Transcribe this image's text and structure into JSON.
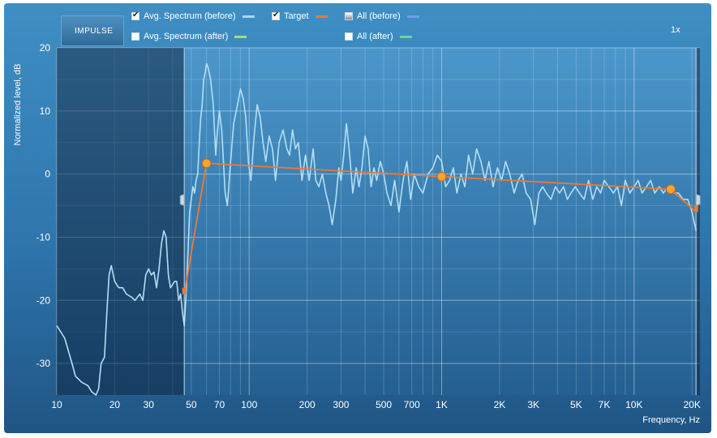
{
  "logo": "IMPULSE",
  "legend": [
    {
      "label": "Avg. Spectrum (before)",
      "checked": true,
      "color": "#a8d6f2"
    },
    {
      "label": "Target",
      "checked": true,
      "color": "#f07832"
    },
    {
      "label": "All (before)",
      "checked": false,
      "color": "#6f9ef0"
    },
    {
      "label": "Avg. Spectrum (after)",
      "checked": false,
      "color": "#9fe07a"
    },
    {
      "label": "All (after)",
      "checked": false,
      "color": "#6ed49a"
    }
  ],
  "zoom": "1x",
  "chart_data": {
    "type": "line",
    "xlabel": "Frequency, Hz",
    "ylabel": "Normalized level, dB",
    "x_scale": "log",
    "xlim": [
      10,
      22000
    ],
    "ylim": [
      -35,
      20
    ],
    "x_ticks": [
      {
        "value": 10,
        "label": "10"
      },
      {
        "value": 20,
        "label": "20"
      },
      {
        "value": 30,
        "label": "30"
      },
      {
        "value": 50,
        "label": "50"
      },
      {
        "value": 70,
        "label": "70"
      },
      {
        "value": 100,
        "label": "100"
      },
      {
        "value": 200,
        "label": "200"
      },
      {
        "value": 300,
        "label": "300"
      },
      {
        "value": 500,
        "label": "500"
      },
      {
        "value": 700,
        "label": "700"
      },
      {
        "value": 1000,
        "label": "1K"
      },
      {
        "value": 2000,
        "label": "2K"
      },
      {
        "value": 3000,
        "label": "3K"
      },
      {
        "value": 5000,
        "label": "5K"
      },
      {
        "value": 7000,
        "label": "7K"
      },
      {
        "value": 10000,
        "label": "10K"
      },
      {
        "value": 20000,
        "label": "20K"
      }
    ],
    "y_ticks": [
      {
        "value": 20,
        "label": "20"
      },
      {
        "value": 10,
        "label": "10"
      },
      {
        "value": 0,
        "label": "0"
      },
      {
        "value": -10,
        "label": "-10"
      },
      {
        "value": -20,
        "label": "-20"
      },
      {
        "value": -30,
        "label": "-30"
      }
    ],
    "grid": true,
    "range_limits_hz": [
      46,
      21000
    ],
    "series": [
      {
        "name": "Avg. Spectrum (before)",
        "color": "#b4def4",
        "points": [
          [
            10,
            -24
          ],
          [
            11,
            -26
          ],
          [
            12,
            -30
          ],
          [
            12.5,
            -32
          ],
          [
            13.5,
            -33
          ],
          [
            14.5,
            -33.5
          ],
          [
            15.2,
            -34.5
          ],
          [
            16,
            -35
          ],
          [
            16.5,
            -34
          ],
          [
            17,
            -30
          ],
          [
            17.7,
            -29
          ],
          [
            18.2,
            -22
          ],
          [
            18.7,
            -16
          ],
          [
            19.2,
            -14.5
          ],
          [
            20,
            -17
          ],
          [
            21,
            -18
          ],
          [
            22,
            -18
          ],
          [
            23,
            -19
          ],
          [
            24.5,
            -19.5
          ],
          [
            25.5,
            -20
          ],
          [
            27,
            -19
          ],
          [
            28,
            -20
          ],
          [
            29,
            -16
          ],
          [
            30,
            -15
          ],
          [
            31,
            -16
          ],
          [
            32,
            -15.5
          ],
          [
            33,
            -18
          ],
          [
            34,
            -15
          ],
          [
            35,
            -11
          ],
          [
            36,
            -9
          ],
          [
            37,
            -10
          ],
          [
            38,
            -16
          ],
          [
            39,
            -18
          ],
          [
            41,
            -17
          ],
          [
            42,
            -17
          ],
          [
            43,
            -20
          ],
          [
            44,
            -19
          ],
          [
            45,
            -22
          ],
          [
            46,
            -24
          ],
          [
            47,
            -19
          ],
          [
            48,
            -13
          ],
          [
            49,
            -6
          ],
          [
            50,
            -4
          ],
          [
            51,
            -2
          ],
          [
            52,
            -3
          ],
          [
            53,
            -1
          ],
          [
            54,
            0
          ],
          [
            55,
            5
          ],
          [
            56,
            9
          ],
          [
            57,
            11
          ],
          [
            58,
            15
          ],
          [
            59,
            16
          ],
          [
            60,
            17.5
          ],
          [
            61,
            17
          ],
          [
            62,
            16
          ],
          [
            63,
            15
          ],
          [
            64,
            13
          ],
          [
            65,
            11
          ],
          [
            66,
            7
          ],
          [
            67,
            3
          ],
          [
            68,
            6
          ],
          [
            70,
            10
          ],
          [
            72,
            7
          ],
          [
            75,
            -3
          ],
          [
            77,
            -5
          ],
          [
            80,
            2
          ],
          [
            83,
            8
          ],
          [
            87,
            11
          ],
          [
            90,
            13.5
          ],
          [
            93,
            12
          ],
          [
            96,
            9
          ],
          [
            99,
            2
          ],
          [
            102,
            -1
          ],
          [
            106,
            6
          ],
          [
            110,
            11
          ],
          [
            114,
            9
          ],
          [
            118,
            5
          ],
          [
            122,
            2
          ],
          [
            127,
            6
          ],
          [
            132,
            4
          ],
          [
            137,
            -1
          ],
          [
            143,
            5
          ],
          [
            150,
            7
          ],
          [
            157,
            4
          ],
          [
            162,
            3
          ],
          [
            168,
            7
          ],
          [
            174,
            4
          ],
          [
            180,
            5
          ],
          [
            188,
            -1
          ],
          [
            196,
            3
          ],
          [
            205,
            -1
          ],
          [
            215,
            4
          ],
          [
            222,
            -1
          ],
          [
            230,
            -2
          ],
          [
            240,
            0
          ],
          [
            250,
            -3
          ],
          [
            260,
            -5
          ],
          [
            270,
            -8
          ],
          [
            282,
            -4
          ],
          [
            292,
            1
          ],
          [
            300,
            -1
          ],
          [
            310,
            3
          ],
          [
            320,
            8
          ],
          [
            333,
            3
          ],
          [
            345,
            -3
          ],
          [
            360,
            1
          ],
          [
            372,
            -2
          ],
          [
            385,
            1
          ],
          [
            400,
            6
          ],
          [
            415,
            4
          ],
          [
            430,
            -2
          ],
          [
            445,
            1
          ],
          [
            460,
            -1
          ],
          [
            480,
            2
          ],
          [
            500,
            0
          ],
          [
            520,
            -3
          ],
          [
            545,
            -5
          ],
          [
            570,
            -1
          ],
          [
            600,
            -6
          ],
          [
            630,
            -1
          ],
          [
            660,
            2
          ],
          [
            690,
            -4
          ],
          [
            720,
            0
          ],
          [
            760,
            -2
          ],
          [
            800,
            -3
          ],
          [
            850,
            0
          ],
          [
            900,
            1
          ],
          [
            950,
            3
          ],
          [
            1000,
            2
          ],
          [
            1050,
            -2
          ],
          [
            1100,
            -1
          ],
          [
            1150,
            1
          ],
          [
            1200,
            -3
          ],
          [
            1260,
            0
          ],
          [
            1320,
            -2
          ],
          [
            1380,
            3
          ],
          [
            1450,
            0
          ],
          [
            1520,
            4
          ],
          [
            1600,
            2
          ],
          [
            1680,
            -1
          ],
          [
            1760,
            2
          ],
          [
            1850,
            -2
          ],
          [
            1950,
            1
          ],
          [
            2050,
            -1
          ],
          [
            2150,
            2
          ],
          [
            2260,
            0
          ],
          [
            2380,
            -3
          ],
          [
            2500,
            -1
          ],
          [
            2620,
            0
          ],
          [
            2750,
            -3
          ],
          [
            2900,
            -4
          ],
          [
            3050,
            -8
          ],
          [
            3200,
            -3
          ],
          [
            3350,
            -2
          ],
          [
            3500,
            -3
          ],
          [
            3700,
            -4
          ],
          [
            3900,
            -2
          ],
          [
            4100,
            -3
          ],
          [
            4300,
            -2
          ],
          [
            4500,
            -4
          ],
          [
            4700,
            -3
          ],
          [
            4950,
            -2
          ],
          [
            5200,
            -3
          ],
          [
            5500,
            -4
          ],
          [
            5800,
            -1
          ],
          [
            6100,
            -4
          ],
          [
            6400,
            -2
          ],
          [
            6700,
            -3
          ],
          [
            7000,
            -1
          ],
          [
            7400,
            -2
          ],
          [
            7800,
            -3
          ],
          [
            8200,
            -2
          ],
          [
            8600,
            -5
          ],
          [
            9000,
            -1
          ],
          [
            9500,
            -3
          ],
          [
            10000,
            -2
          ],
          [
            10500,
            -1
          ],
          [
            11000,
            -3
          ],
          [
            11600,
            -2
          ],
          [
            12200,
            -1
          ],
          [
            12800,
            -3
          ],
          [
            13500,
            -2
          ],
          [
            14200,
            -3
          ],
          [
            15000,
            -2
          ],
          [
            16000,
            -3
          ],
          [
            17000,
            -3
          ],
          [
            18000,
            -4
          ],
          [
            19000,
            -4
          ],
          [
            20000,
            -6
          ],
          [
            21000,
            -9
          ]
        ]
      },
      {
        "name": "Target",
        "color": "#f07832",
        "points": [
          [
            46,
            -19
          ],
          [
            60,
            1.7
          ],
          [
            1000,
            -0.4
          ],
          [
            15500,
            -2.4
          ],
          [
            21000,
            -6
          ]
        ],
        "handles": [
          [
            60,
            1.7
          ],
          [
            1000,
            -0.4
          ],
          [
            15500,
            -2.4
          ]
        ],
        "end_markers": [
          [
            46,
            -18.5
          ],
          [
            21000,
            -5.5
          ]
        ]
      }
    ]
  }
}
